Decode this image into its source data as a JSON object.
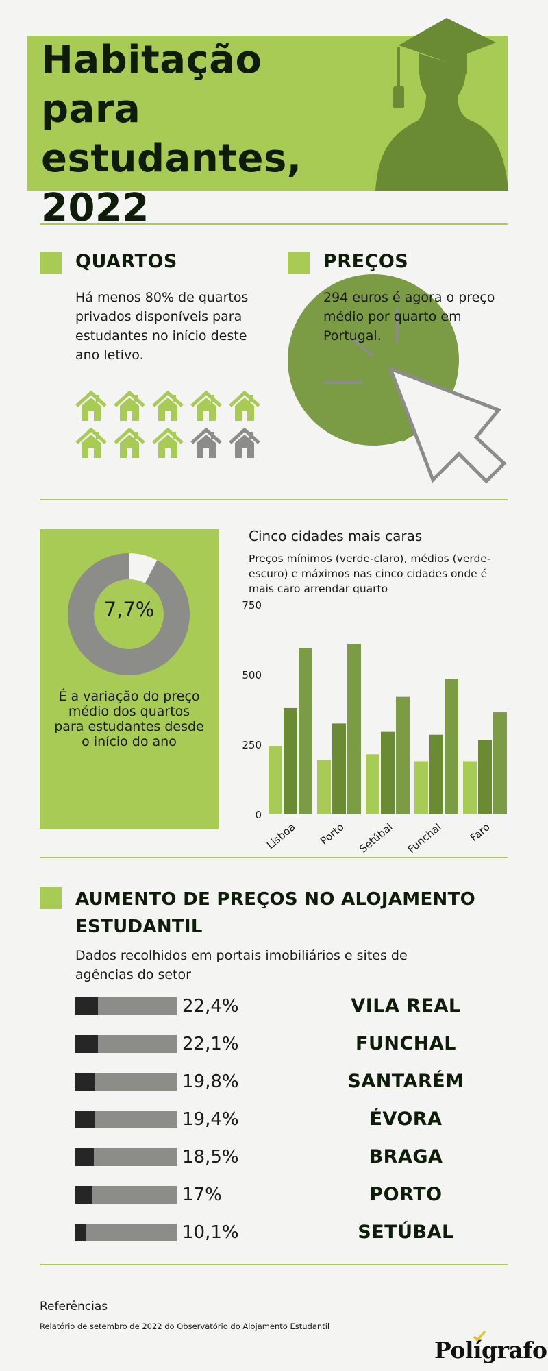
{
  "header": {
    "title_lines": [
      "Habitação",
      "para",
      "estudantes,",
      "2022"
    ]
  },
  "quartos": {
    "title": "QUARTOS",
    "text": "Há menos 80% de quartos privados disponíveis para estudantes no início deste ano letivo.",
    "houses_total": 10,
    "houses_highlighted": 8
  },
  "precos": {
    "title": "PREÇOS",
    "text": "294 euros é agora o preço médio por quarto em Portugal."
  },
  "donut": {
    "value_label": "7,7%",
    "fraction": 0.077,
    "description": "É a variação do preço médio dos quartos para estudantes desde o início do ano"
  },
  "colors": {
    "accent_light": "#a8cb55",
    "accent_dark": "#6a8a34",
    "accent_mid": "#7b9c44",
    "gray": "#8c8c88",
    "ink": "#0f1c0a"
  },
  "chart_data": {
    "type": "bar",
    "title": "Cinco cidades mais caras",
    "subtitle": "Preços mínimos (verde-claro), médios (verde-escuro) e máximos nas cinco cidades onde é mais caro arrendar quarto",
    "categories": [
      "Lisboa",
      "Porto",
      "Setúbal",
      "Funchal",
      "Faro"
    ],
    "series": [
      {
        "values": [
          245,
          195,
          215,
          190,
          190
        ],
        "color": "#a8cb55"
      },
      {
        "values": [
          380,
          325,
          295,
          285,
          265
        ],
        "color": "#6a8a34"
      },
      {
        "values": [
          595,
          610,
          420,
          485,
          365
        ],
        "color": "#7b9c44"
      }
    ],
    "yticks": [
      "750",
      "500",
      "250",
      "0"
    ],
    "ylim": [
      0,
      750
    ],
    "grid": false
  },
  "aumento": {
    "title": "AUMENTO DE PREÇOS NO ALOJAMENTO ESTUDANTIL",
    "subtitle": "Dados recolhidos em portais imobiliários e sites de agências do setor",
    "rows": [
      {
        "value": "22,4%",
        "fraction": 0.224,
        "city": "VILA REAL"
      },
      {
        "value": "22,1%",
        "fraction": 0.221,
        "city": "FUNCHAL"
      },
      {
        "value": "19,8%",
        "fraction": 0.198,
        "city": "SANTARÉM"
      },
      {
        "value": "19,4%",
        "fraction": 0.194,
        "city": "ÉVORA"
      },
      {
        "value": "18,5%",
        "fraction": 0.185,
        "city": "BRAGA"
      },
      {
        "value": "17%",
        "fraction": 0.17,
        "city": "PORTO"
      },
      {
        "value": "10,1%",
        "fraction": 0.101,
        "city": "SETÚBAL"
      }
    ]
  },
  "references": {
    "title": "Referências",
    "text": "Relatório de setembro de 2022 do Observatório do Alojamento Estudantil"
  },
  "logo": {
    "text": "Polígrafo"
  }
}
